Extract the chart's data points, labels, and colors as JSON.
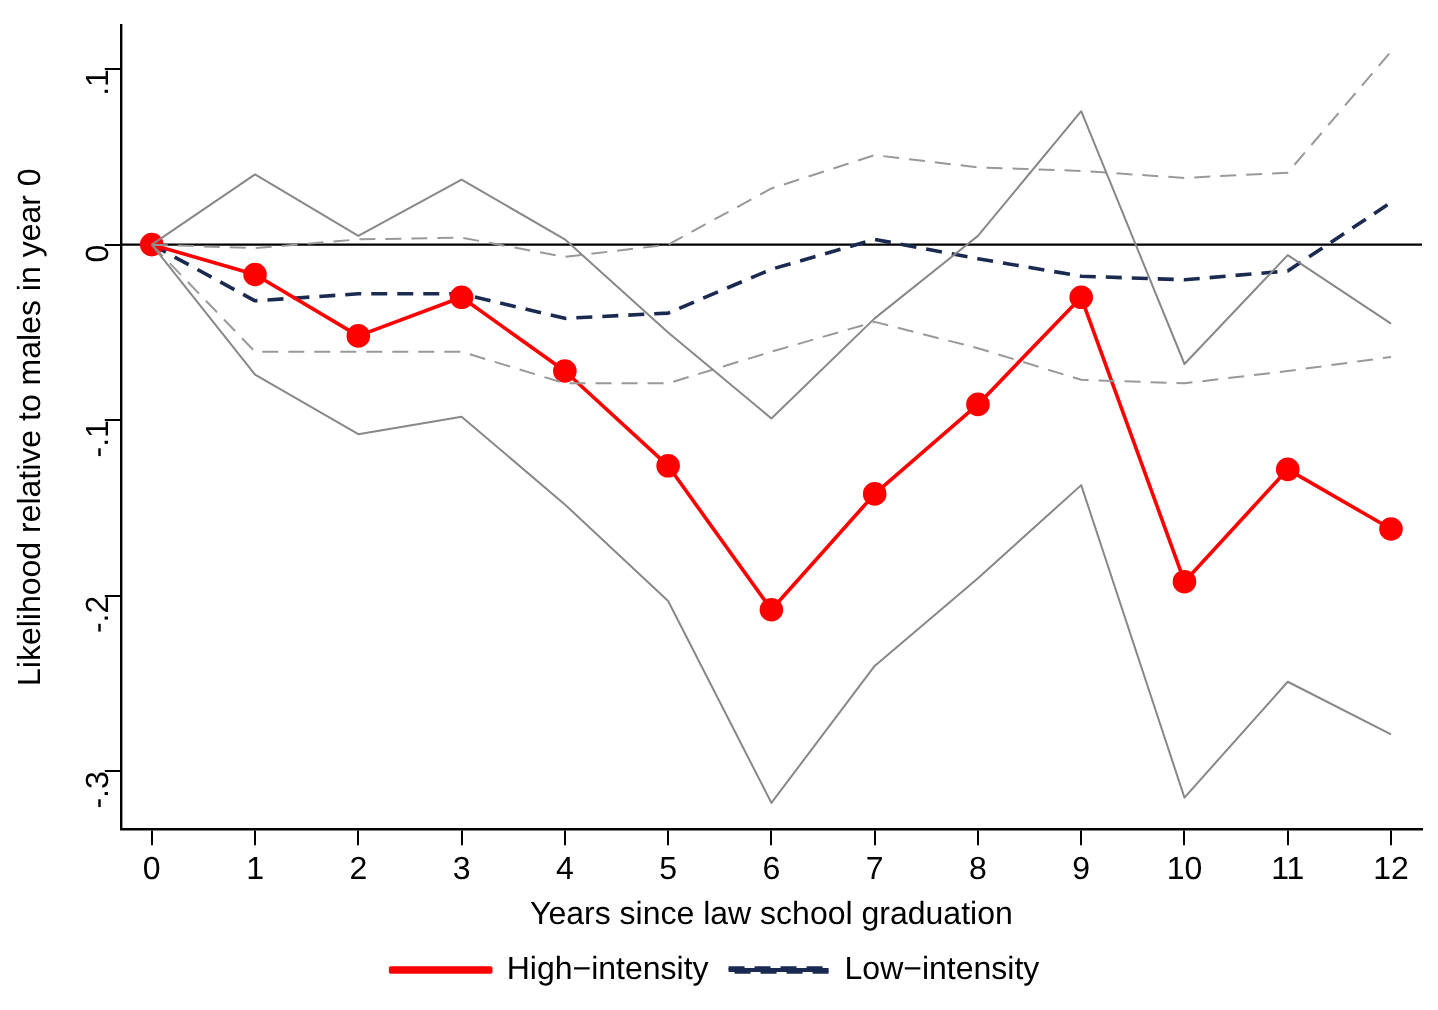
{
  "chart_data": {
    "type": "line",
    "xlabel": "Years since law school graduation",
    "ylabel": "Likelihood relative to males in year 0",
    "x": [
      0,
      1,
      2,
      3,
      4,
      5,
      6,
      7,
      8,
      9,
      10,
      11,
      12
    ],
    "xlim": [
      -0.3,
      12.3
    ],
    "xticks": [
      0,
      1,
      2,
      3,
      4,
      5,
      6,
      7,
      8,
      9,
      10,
      11,
      12
    ],
    "ylim": [
      -0.333,
      0.125
    ],
    "yticks": [
      {
        "value": -0.3,
        "label": "-.3"
      },
      {
        "value": -0.2,
        "label": "-.2"
      },
      {
        "value": -0.1,
        "label": "-.1"
      },
      {
        "value": 0,
        "label": "0"
      },
      {
        "value": 0.1,
        "label": ".1"
      }
    ],
    "grid": false,
    "legend": "bottom",
    "ref_lines": [
      {
        "axis": "y",
        "value": 0,
        "color": "#000000"
      }
    ],
    "series": [
      {
        "color": "#888888",
        "line_style": "solid",
        "marker": "none",
        "values": [
          0,
          0.04,
          0.005,
          0.037,
          0.003,
          -0.05,
          -0.099,
          -0.042,
          0.005,
          0.076,
          -0.068,
          -0.006,
          -0.045
        ]
      },
      {
        "color": "#888888",
        "line_style": "solid",
        "marker": "none",
        "values": [
          0,
          -0.074,
          -0.108,
          -0.098,
          -0.148,
          -0.203,
          -0.318,
          -0.24,
          -0.19,
          -0.137,
          -0.315,
          -0.249,
          -0.279
        ]
      },
      {
        "color": "#999999",
        "line_style": "dashed",
        "marker": "none",
        "values": [
          0,
          -0.002,
          0.003,
          0.004,
          -0.007,
          0.0,
          0.032,
          0.051,
          0.044,
          0.042,
          0.038,
          0.041,
          0.11
        ]
      },
      {
        "color": "#999999",
        "line_style": "dashed",
        "marker": "none",
        "values": [
          0,
          -0.061,
          -0.061,
          -0.061,
          -0.079,
          -0.079,
          -0.061,
          -0.044,
          -0.059,
          -0.077,
          -0.079,
          -0.072,
          -0.064
        ]
      },
      {
        "name": "High−intensity",
        "color": "#ff0000",
        "line_style": "solid",
        "marker": "circle",
        "values": [
          0,
          -0.017,
          -0.052,
          -0.03,
          -0.072,
          -0.126,
          -0.208,
          -0.142,
          -0.091,
          -0.03,
          -0.192,
          -0.128,
          -0.162
        ]
      },
      {
        "name": "Low−intensity",
        "color": "#1a2a50",
        "line_style": "dashed",
        "marker": "none",
        "values": [
          0,
          -0.032,
          -0.028,
          -0.028,
          -0.042,
          -0.039,
          -0.014,
          0.003,
          -0.008,
          -0.018,
          -0.02,
          -0.015,
          0.024
        ]
      }
    ]
  }
}
